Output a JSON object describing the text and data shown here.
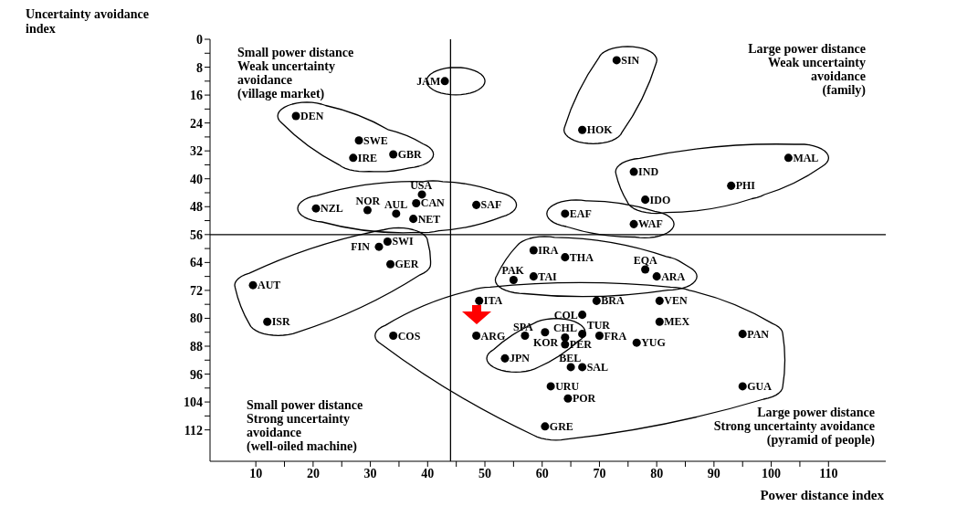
{
  "chart_data": {
    "type": "scatter",
    "xlabel": "Power distance index",
    "ylabel": "Uncertainty avoidance index",
    "xlim": [
      2,
      120
    ],
    "xticks": [
      10,
      {
        "value": 15,
        "label": null
      },
      20,
      {
        "value": 25,
        "label": null
      },
      30,
      {
        "value": 35,
        "label": null
      },
      40,
      {
        "value": 45,
        "label": null
      },
      50,
      {
        "value": 55,
        "label": null
      },
      60,
      {
        "value": 65,
        "label": null
      },
      70,
      {
        "value": 75,
        "label": null
      },
      80,
      {
        "value": 85,
        "label": null
      },
      90,
      {
        "value": 95,
        "label": null
      },
      100,
      {
        "value": 105,
        "label": null
      },
      110
    ],
    "ylim": [
      121,
      0
    ],
    "yticks": [
      0,
      {
        "value": 4,
        "label": null
      },
      8,
      {
        "value": 12,
        "label": null
      },
      16,
      {
        "value": 20,
        "label": null
      },
      24,
      {
        "value": 28,
        "label": null
      },
      32,
      {
        "value": 36,
        "label": null
      },
      40,
      {
        "value": 44,
        "label": null
      },
      48,
      {
        "value": 52,
        "label": null
      },
      56,
      {
        "value": 60,
        "label": null
      },
      64,
      {
        "value": 68,
        "label": null
      },
      72,
      {
        "value": 76,
        "label": null
      },
      80,
      {
        "value": 84,
        "label": null
      },
      88,
      {
        "value": 92,
        "label": null
      },
      96,
      {
        "value": 100,
        "label": null
      },
      104,
      {
        "value": 108,
        "label": null
      },
      112
    ],
    "grid": false,
    "legend": false,
    "marker": "circle",
    "ref_lines": [
      {
        "axis": "x",
        "value": 44,
        "color": "#000000"
      },
      {
        "axis": "y",
        "value": 56,
        "color": "#000000"
      }
    ],
    "annotations": [
      "Small power distance\nWeak uncertainty\navoidance\n(village market)",
      "Large power distance\nWeak uncertainty\navoidance\n(family)",
      "Small power distance\nStrong uncertainty\navoidance\n(well-oiled machine)",
      "Large power distance\nStrong uncertainty avoidance\n(pyramid of people)"
    ],
    "series": [
      {
        "color": "#000000",
        "x": [
          43
        ],
        "values": [
          12
        ],
        "value_labels": [
          "JAM"
        ]
      },
      {
        "color": "#000000",
        "x": [
          73,
          67
        ],
        "values": [
          6,
          26
        ],
        "value_labels": [
          "SIN",
          "HOK"
        ]
      },
      {
        "color": "#000000",
        "x": [
          17,
          28,
          27,
          34
        ],
        "values": [
          22,
          29,
          34,
          33
        ],
        "value_labels": [
          "DEN",
          "SWE",
          "IRE",
          "GBR"
        ]
      },
      {
        "color": "#000000",
        "x": [
          103,
          76,
          93,
          78
        ],
        "values": [
          34,
          38,
          42,
          46
        ],
        "value_labels": [
          "MAL",
          "IND",
          "PHI",
          "IDO"
        ]
      },
      {
        "color": "#000000",
        "x": [
          39,
          38,
          20.5,
          29.5,
          34.5,
          37.5,
          48.5
        ],
        "values": [
          44.5,
          47,
          48.5,
          49,
          50,
          51.5,
          47.5
        ],
        "value_labels": [
          "USA",
          "CAN",
          "NZL",
          "NOR",
          "AUL",
          "NET",
          "SAF"
        ]
      },
      {
        "color": "#000000",
        "x": [
          64,
          76
        ],
        "values": [
          50,
          53
        ],
        "value_labels": [
          "EAF",
          "WAF"
        ]
      },
      {
        "color": "#000000",
        "x": [
          33,
          31.5,
          33.5,
          9.5,
          12
        ],
        "values": [
          58,
          59.5,
          64.5,
          70.5,
          81
        ],
        "value_labels": [
          "SWI",
          "FIN",
          "GER",
          "AUT",
          "ISR"
        ]
      },
      {
        "color": "#000000",
        "x": [
          58.5,
          64,
          55,
          58.5,
          78,
          80
        ],
        "values": [
          60.5,
          62.5,
          69,
          68,
          66,
          68
        ],
        "value_labels": [
          "IRA",
          "THA",
          "PAK",
          "TAI",
          "EQA",
          "ARA"
        ]
      },
      {
        "color": "#000000",
        "x": [
          34,
          49,
          48.5,
          57,
          64,
          64,
          67,
          70,
          67,
          69.5,
          80.5,
          80.5,
          76.5,
          95,
          95,
          65,
          67,
          61.5,
          64.5,
          60.5
        ],
        "values": [
          85,
          75,
          85,
          85,
          85.5,
          87.5,
          84.5,
          85,
          79,
          75,
          75,
          81,
          87,
          84.5,
          99.5,
          94,
          94,
          99.5,
          103,
          111
        ],
        "value_labels": [
          "COS",
          "ITA",
          "ARG",
          "SPA",
          "CHL",
          "PER",
          "TUR",
          "FRA",
          "COL",
          "BRA",
          "VEN",
          "MEX",
          "YUG",
          "PAN",
          "GUA",
          "BEL",
          "SAL",
          "URU",
          "POR",
          "GRE"
        ]
      },
      {
        "color": "#000000",
        "x": [
          60.5,
          53.5
        ],
        "values": [
          84,
          91.5
        ],
        "value_labels": [
          "KOR",
          "JPN"
        ]
      }
    ]
  }
}
